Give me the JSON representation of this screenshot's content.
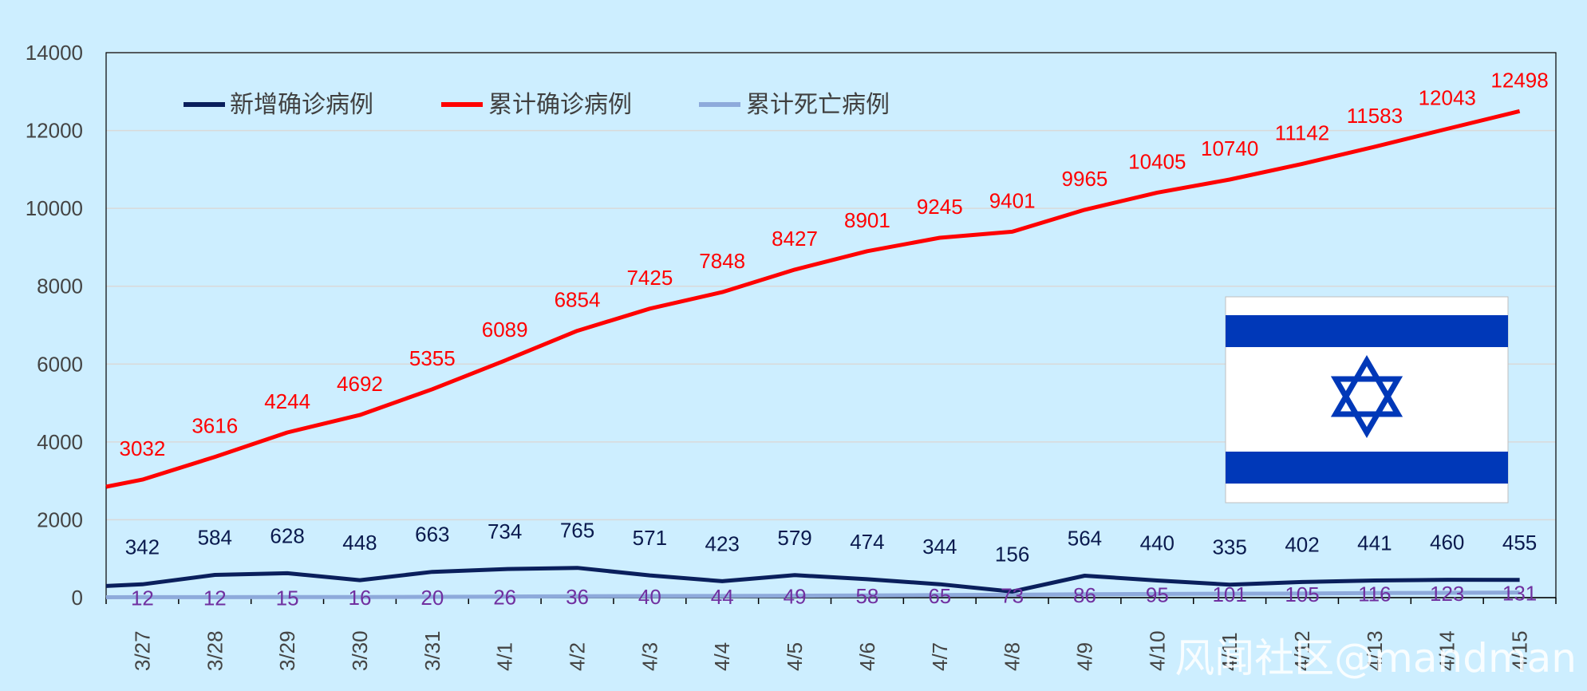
{
  "chart_data": {
    "type": "line",
    "categories": [
      "3/27",
      "3/28",
      "3/29",
      "3/30",
      "3/31",
      "4/1",
      "4/2",
      "4/3",
      "4/4",
      "4/5",
      "4/6",
      "4/7",
      "4/8",
      "4/9",
      "4/10",
      "4/11",
      "4/12",
      "4/13",
      "4/14",
      "4/15"
    ],
    "series": [
      {
        "name": "新增确诊病例",
        "color": "#0a1f5c",
        "start_value": 300,
        "values": [
          342,
          584,
          628,
          448,
          663,
          734,
          765,
          571,
          423,
          579,
          474,
          344,
          156,
          564,
          440,
          335,
          402,
          441,
          460,
          455
        ]
      },
      {
        "name": "累计确诊病例",
        "color": "#ff0000",
        "start_value": 2850,
        "values": [
          3032,
          3616,
          4244,
          4692,
          5355,
          6089,
          6854,
          7425,
          7848,
          8427,
          8901,
          9245,
          9401,
          9965,
          10405,
          10740,
          11142,
          11583,
          12043,
          12498
        ]
      },
      {
        "name": "累计死亡病例",
        "color": "#8eaadb",
        "start_value": 10,
        "values": [
          12,
          12,
          15,
          16,
          20,
          26,
          36,
          40,
          44,
          49,
          58,
          65,
          73,
          86,
          95,
          101,
          105,
          116,
          123,
          131
        ]
      }
    ],
    "yticks": [
      "0",
      "2000",
      "4000",
      "6000",
      "8000",
      "10000",
      "12000",
      "14000"
    ],
    "ylim": [
      0,
      14000
    ],
    "grid": true,
    "legend_position": "top-left"
  },
  "watermark": "风闻社区@mandman",
  "flag": {
    "name": "israel-flag",
    "stripe_color": "#0038b8",
    "field_color": "#ffffff"
  }
}
